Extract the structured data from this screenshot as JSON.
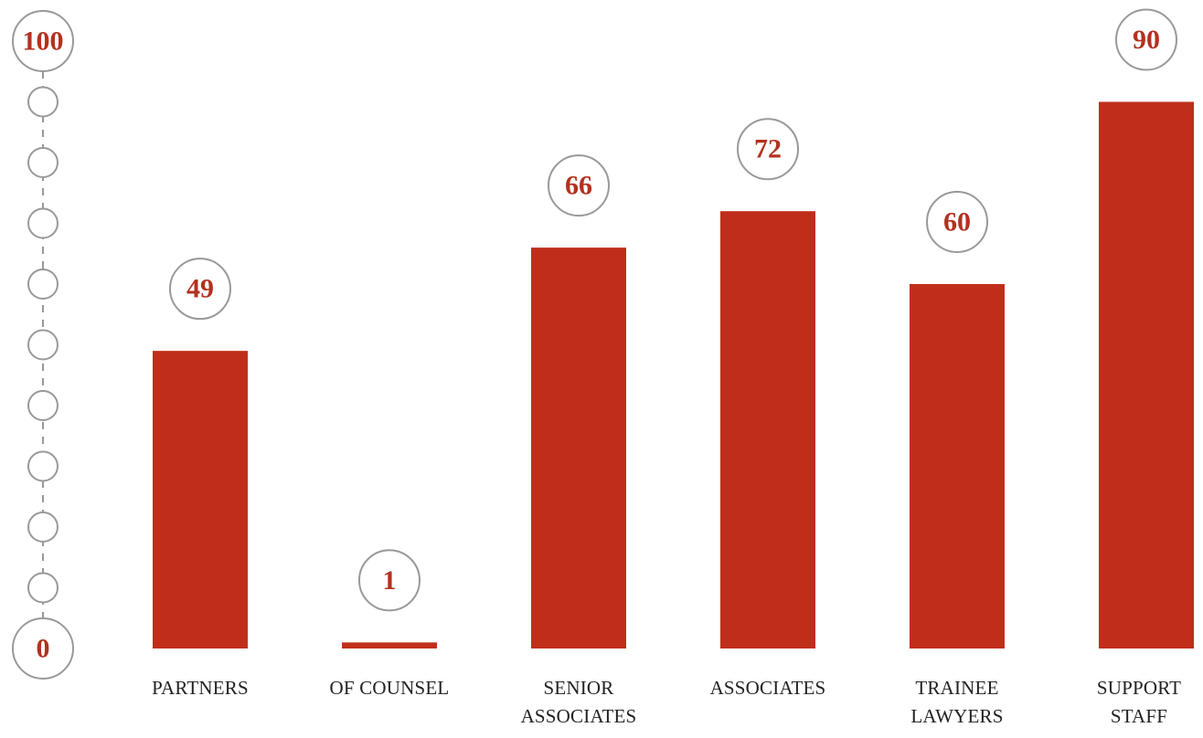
{
  "chart_data": {
    "type": "bar",
    "categories": [
      "PARTNERS",
      "OF COUNSEL",
      "SENIOR ASSOCIATES",
      "ASSOCIATES",
      "TRAINEE LAWYERS",
      "SUPPORT STAFF"
    ],
    "values": [
      49,
      1,
      66,
      72,
      60,
      90
    ],
    "color": "#c02e1b",
    "ylim": [
      0,
      100
    ],
    "yticks": [
      0,
      100
    ],
    "minor_yticks": [
      10,
      20,
      30,
      40,
      50,
      60,
      70,
      80,
      90
    ]
  }
}
